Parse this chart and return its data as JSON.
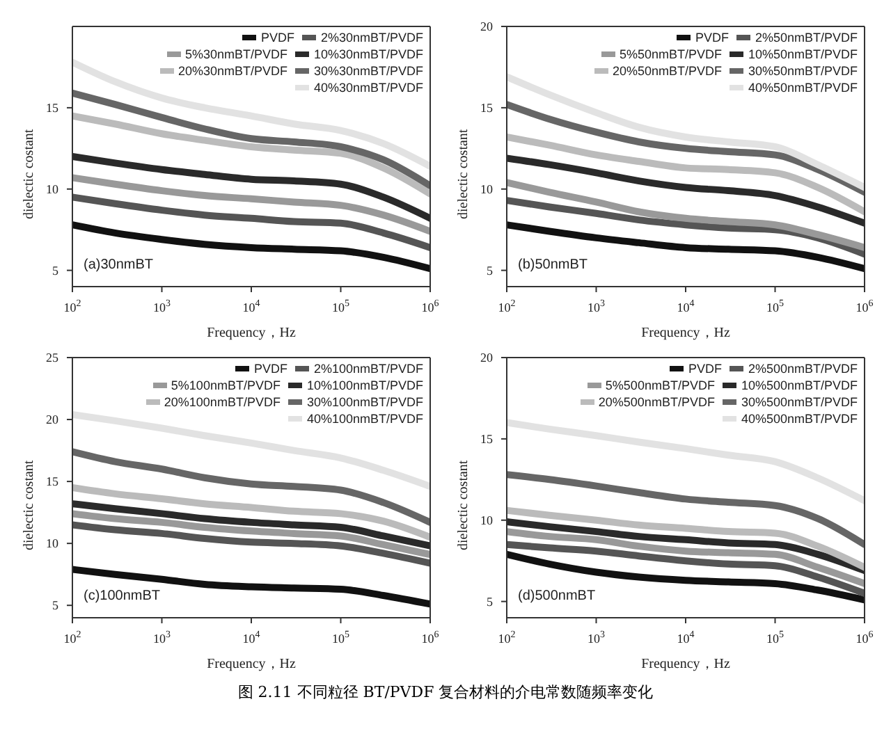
{
  "chart_data": [
    {
      "type": "line",
      "xlabel": "Frequency，Hz",
      "ylabel": "dielectic costant",
      "log": "x",
      "legend": "top right",
      "xlim": [
        100,
        1000000
      ],
      "xticks": [
        {
          "value": 100,
          "label": "10$^{2}$"
        },
        {
          "value": 1000,
          "label": "10$^{3}$"
        },
        {
          "value": 10000,
          "label": "10$^{4}$"
        },
        {
          "value": 100000,
          "label": "10$^{5}$"
        },
        {
          "value": 1000000,
          "label": "10$^{6}$"
        }
      ],
      "ylim": [
        4,
        20
      ],
      "yticks": [
        5,
        10,
        15
      ],
      "x": [
        100,
        300,
        1000,
        3000,
        10000,
        30000,
        100000,
        300000,
        1000000
      ],
      "annotations": [
        "(a)30nmBT"
      ],
      "series": [
        {
          "name": "PVDF",
          "color": "#111111",
          "values": [
            7.8,
            7.3,
            6.9,
            6.6,
            6.4,
            6.3,
            6.2,
            5.8,
            5.1
          ]
        },
        {
          "name": "2%30nmBT/PVDF",
          "color": "#555555",
          "values": [
            9.5,
            9.1,
            8.7,
            8.4,
            8.2,
            8.0,
            7.9,
            7.3,
            6.4
          ]
        },
        {
          "name": "5%30nmBT/PVDF",
          "color": "#999999",
          "values": [
            10.7,
            10.3,
            9.9,
            9.6,
            9.4,
            9.2,
            9.0,
            8.4,
            7.4
          ]
        },
        {
          "name": "10%30nmBT/PVDF",
          "color": "#2a2a2a",
          "values": [
            12.0,
            11.6,
            11.2,
            10.9,
            10.6,
            10.5,
            10.3,
            9.5,
            8.2
          ]
        },
        {
          "name": "20%30nmBT/PVDF",
          "color": "#bbbbbb",
          "values": [
            14.5,
            14.0,
            13.4,
            13.0,
            12.6,
            12.4,
            12.2,
            11.3,
            9.7
          ]
        },
        {
          "name": "30%30nmBT/PVDF",
          "color": "#666666",
          "values": [
            15.9,
            15.2,
            14.4,
            13.7,
            13.1,
            12.9,
            12.6,
            11.8,
            10.2
          ]
        },
        {
          "name": "40%30nmBT/PVDF",
          "color": "#e2e2e2",
          "values": [
            17.8,
            16.6,
            15.6,
            15.0,
            14.5,
            14.0,
            13.6,
            12.8,
            11.4
          ]
        }
      ]
    },
    {
      "type": "line",
      "xlabel": "Frequency，Hz",
      "ylabel": "dielectic costant",
      "log": "x",
      "legend": "top right",
      "xlim": [
        100,
        1000000
      ],
      "xticks": [
        {
          "value": 100,
          "label": "10$^{2}$"
        },
        {
          "value": 1000,
          "label": "10$^{3}$"
        },
        {
          "value": 10000,
          "label": "10$^{4}$"
        },
        {
          "value": 100000,
          "label": "10$^{5}$"
        },
        {
          "value": 1000000,
          "label": "10$^{6}$"
        }
      ],
      "ylim": [
        4,
        20
      ],
      "yticks": [
        5,
        10,
        15,
        20
      ],
      "x": [
        100,
        300,
        1000,
        3000,
        10000,
        30000,
        100000,
        300000,
        1000000
      ],
      "annotations": [
        "(b)50nmBT"
      ],
      "series": [
        {
          "name": "PVDF",
          "color": "#111111",
          "values": [
            7.8,
            7.4,
            7.0,
            6.7,
            6.4,
            6.3,
            6.2,
            5.8,
            5.1
          ]
        },
        {
          "name": "2%50nmBT/PVDF",
          "color": "#555555",
          "values": [
            9.3,
            8.9,
            8.5,
            8.1,
            7.8,
            7.6,
            7.5,
            7.0,
            6.0
          ]
        },
        {
          "name": "5%50nmBT/PVDF",
          "color": "#999999",
          "values": [
            10.4,
            9.8,
            9.2,
            8.6,
            8.2,
            8.0,
            7.8,
            7.2,
            6.4
          ]
        },
        {
          "name": "10%50nmBT/PVDF",
          "color": "#2a2a2a",
          "values": [
            11.9,
            11.5,
            11.0,
            10.5,
            10.1,
            9.9,
            9.6,
            8.9,
            7.9
          ]
        },
        {
          "name": "20%50nmBT/PVDF",
          "color": "#bbbbbb",
          "values": [
            13.2,
            12.7,
            12.1,
            11.7,
            11.3,
            11.2,
            11.0,
            10.1,
            8.6
          ]
        },
        {
          "name": "30%50nmBT/PVDF",
          "color": "#666666",
          "values": [
            15.2,
            14.3,
            13.5,
            12.9,
            12.5,
            12.3,
            12.1,
            11.2,
            9.8
          ]
        },
        {
          "name": "40%50nmBT/PVDF",
          "color": "#e2e2e2",
          "values": [
            16.9,
            15.8,
            14.7,
            13.8,
            13.2,
            12.9,
            12.6,
            11.5,
            10.1
          ]
        }
      ]
    },
    {
      "type": "line",
      "xlabel": "Frequency，Hz",
      "ylabel": "dielectic costant",
      "log": "x",
      "legend": "top right",
      "xlim": [
        100,
        1000000
      ],
      "xticks": [
        {
          "value": 100,
          "label": "10$^{2}$"
        },
        {
          "value": 1000,
          "label": "10$^{3}$"
        },
        {
          "value": 10000,
          "label": "10$^{4}$"
        },
        {
          "value": 100000,
          "label": "10$^{5}$"
        },
        {
          "value": 1000000,
          "label": "10$^{6}$"
        }
      ],
      "ylim": [
        4,
        25
      ],
      "yticks": [
        5,
        10,
        15,
        20,
        25
      ],
      "x": [
        100,
        300,
        1000,
        3000,
        10000,
        30000,
        100000,
        300000,
        1000000
      ],
      "annotations": [
        "(c)100nmBT"
      ],
      "series": [
        {
          "name": "PVDF",
          "color": "#111111",
          "values": [
            7.9,
            7.5,
            7.1,
            6.7,
            6.5,
            6.4,
            6.3,
            5.8,
            5.1
          ]
        },
        {
          "name": "2%100nmBT/PVDF",
          "color": "#555555",
          "values": [
            11.5,
            11.1,
            10.8,
            10.4,
            10.1,
            10.0,
            9.8,
            9.2,
            8.4
          ]
        },
        {
          "name": "5%100nmBT/PVDF",
          "color": "#999999",
          "values": [
            12.4,
            12.0,
            11.7,
            11.3,
            11.0,
            10.8,
            10.6,
            9.9,
            9.1
          ]
        },
        {
          "name": "10%100nmBT/PVDF",
          "color": "#2a2a2a",
          "values": [
            13.2,
            12.8,
            12.4,
            12.0,
            11.7,
            11.5,
            11.3,
            10.6,
            9.8
          ]
        },
        {
          "name": "20%100nmBT/PVDF",
          "color": "#bbbbbb",
          "values": [
            14.5,
            14.0,
            13.6,
            13.2,
            12.9,
            12.6,
            12.4,
            11.8,
            10.5
          ]
        },
        {
          "name": "30%100nmBT/PVDF",
          "color": "#666666",
          "values": [
            17.4,
            16.6,
            16.0,
            15.3,
            14.8,
            14.6,
            14.3,
            13.3,
            11.7
          ]
        },
        {
          "name": "40%100nmBT/PVDF",
          "color": "#e2e2e2",
          "values": [
            20.4,
            19.9,
            19.3,
            18.7,
            18.1,
            17.5,
            16.9,
            15.9,
            14.6
          ]
        }
      ]
    },
    {
      "type": "line",
      "xlabel": "Frequency，Hz",
      "ylabel": "dielectic costant",
      "log": "x",
      "legend": "top right",
      "xlim": [
        100,
        1000000
      ],
      "xticks": [
        {
          "value": 100,
          "label": "10$^{2}$"
        },
        {
          "value": 1000,
          "label": "10$^{3}$"
        },
        {
          "value": 10000,
          "label": "10$^{4}$"
        },
        {
          "value": 100000,
          "label": "10$^{5}$"
        },
        {
          "value": 1000000,
          "label": "10$^{6}$"
        }
      ],
      "ylim": [
        4,
        20
      ],
      "yticks": [
        5,
        10,
        15,
        20
      ],
      "x": [
        100,
        300,
        1000,
        3000,
        10000,
        30000,
        100000,
        300000,
        1000000
      ],
      "annotations": [
        "(d)500nmBT",
        "图 2.11 不同粒径 BT/PVDF 复合材料的介电常数随频率变化"
      ],
      "series": [
        {
          "name": "PVDF",
          "color": "#111111",
          "values": [
            7.9,
            7.3,
            6.8,
            6.5,
            6.3,
            6.2,
            6.1,
            5.7,
            5.1
          ]
        },
        {
          "name": "2%500nmBT/PVDF",
          "color": "#555555",
          "values": [
            8.5,
            8.3,
            8.1,
            7.8,
            7.5,
            7.3,
            7.2,
            6.5,
            5.5
          ]
        },
        {
          "name": "5%500nmBT/PVDF",
          "color": "#999999",
          "values": [
            9.3,
            9.0,
            8.8,
            8.4,
            8.1,
            8.0,
            7.9,
            7.1,
            6.1
          ]
        },
        {
          "name": "10%500nmBT/PVDF",
          "color": "#2a2a2a",
          "values": [
            9.9,
            9.6,
            9.3,
            9.0,
            8.8,
            8.6,
            8.5,
            7.9,
            6.9
          ]
        },
        {
          "name": "20%500nmBT/PVDF",
          "color": "#bbbbbb",
          "values": [
            10.6,
            10.3,
            10.0,
            9.7,
            9.5,
            9.3,
            9.2,
            8.4,
            7.1
          ]
        },
        {
          "name": "30%500nmBT/PVDF",
          "color": "#666666",
          "values": [
            12.8,
            12.5,
            12.1,
            11.7,
            11.3,
            11.1,
            10.9,
            10.1,
            8.5
          ]
        },
        {
          "name": "40%500nmBT/PVDF",
          "color": "#e2e2e2",
          "values": [
            16.0,
            15.6,
            15.2,
            14.8,
            14.4,
            14.0,
            13.6,
            12.6,
            11.2
          ]
        }
      ]
    }
  ]
}
